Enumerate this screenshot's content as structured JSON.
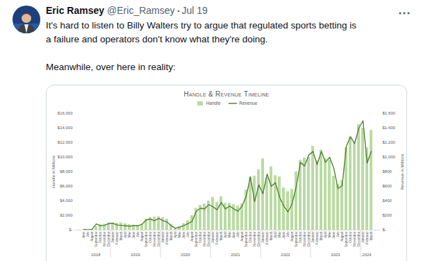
{
  "tweet": {
    "author": "Eric Ramsey",
    "handle": "@Eric_Ramsey",
    "date": "Jul 19",
    "paragraphs": [
      [
        "It's hard to listen to Billy Walters try to argue that regulated sports betting is",
        "a failure and operators don't know what they're doing."
      ],
      [
        "Meanwhile, over here in reality:"
      ]
    ]
  },
  "chart_data": {
    "type": "bar",
    "title": "Handle & Revenue Timeline",
    "categories": [
      "June",
      "July",
      "August",
      "September",
      "October",
      "November",
      "December",
      "January",
      "February",
      "March",
      "April",
      "May",
      "June",
      "July",
      "August",
      "September",
      "October",
      "November",
      "December",
      "January",
      "February",
      "March",
      "April",
      "May",
      "June",
      "July",
      "August",
      "September",
      "October",
      "November",
      "December",
      "January",
      "February",
      "March",
      "April",
      "May",
      "June",
      "July",
      "August",
      "September",
      "October",
      "November",
      "December",
      "January",
      "February",
      "March",
      "April",
      "May",
      "June",
      "July",
      "August",
      "September",
      "October",
      "November",
      "December",
      "January",
      "February",
      "March",
      "April",
      "May",
      "June",
      "July",
      "August",
      "September",
      "October",
      "November",
      "December",
      "January",
      "February",
      "March"
    ],
    "category_years": [
      "2018",
      "2018",
      "2018",
      "2018",
      "2018",
      "2018",
      "2018",
      "2019",
      "2019",
      "2019",
      "2019",
      "2019",
      "2019",
      "2019",
      "2019",
      "2019",
      "2019",
      "2019",
      "2019",
      "2020",
      "2020",
      "2020",
      "2020",
      "2020",
      "2020",
      "2020",
      "2020",
      "2020",
      "2020",
      "2020",
      "2020",
      "2021",
      "2021",
      "2021",
      "2021",
      "2021",
      "2021",
      "2021",
      "2021",
      "2021",
      "2021",
      "2021",
      "2021",
      "2022",
      "2022",
      "2022",
      "2022",
      "2022",
      "2022",
      "2022",
      "2022",
      "2022",
      "2022",
      "2022",
      "2022",
      "2023",
      "2023",
      "2023",
      "2023",
      "2023",
      "2023",
      "2023",
      "2023",
      "2023",
      "2023",
      "2023",
      "2023",
      "2024",
      "2024",
      "2024"
    ],
    "series": [
      {
        "name": "Handle",
        "type": "bar",
        "color": "#b9dca1",
        "values": [
          20,
          50,
          100,
          500,
          750,
          800,
          1000,
          1000,
          950,
          1000,
          900,
          750,
          700,
          650,
          800,
          1500,
          1750,
          1800,
          1850,
          1700,
          1500,
          800,
          300,
          500,
          900,
          1300,
          2000,
          3000,
          3400,
          3600,
          4000,
          4500,
          3800,
          4600,
          3700,
          3700,
          3500,
          3300,
          3600,
          5500,
          7300,
          7400,
          8300,
          9800,
          7200,
          8700,
          7500,
          7300,
          5800,
          5300,
          5600,
          8000,
          9600,
          9900,
          10000,
          11500,
          9500,
          11000,
          9800,
          9600,
          7400,
          6300,
          6800,
          11300,
          12800,
          12000,
          14500,
          14000,
          11300,
          13700
        ]
      },
      {
        "name": "Revenue",
        "type": "line",
        "axis": "y2",
        "color": "#548235",
        "values": [
          10,
          5,
          10,
          85,
          60,
          65,
          90,
          95,
          70,
          65,
          60,
          55,
          60,
          60,
          80,
          140,
          150,
          130,
          160,
          130,
          110,
          60,
          25,
          40,
          60,
          90,
          120,
          260,
          300,
          290,
          350,
          320,
          280,
          380,
          290,
          330,
          290,
          260,
          330,
          470,
          730,
          390,
          620,
          500,
          770,
          600,
          650,
          450,
          330,
          250,
          360,
          600,
          930,
          880,
          1030,
          1080,
          900,
          1080,
          930,
          1000,
          850,
          570,
          610,
          1150,
          1280,
          1190,
          1400,
          1500,
          920,
          1080
        ]
      }
    ],
    "ylabel": "Handle in Millions",
    "y2label": "Revenue in Millions",
    "ylim": [
      0,
      16000
    ],
    "yticks": [
      {
        "value": 0,
        "label": "$-"
      },
      {
        "value": 2000,
        "label": "$2,000"
      },
      {
        "value": 4000,
        "label": "$4,000"
      },
      {
        "value": 6000,
        "label": "$6,000"
      },
      {
        "value": 8000,
        "label": "$8,000"
      },
      {
        "value": 10000,
        "label": "$10,000"
      },
      {
        "value": 12000,
        "label": "$12,000"
      },
      {
        "value": 14000,
        "label": "$14,000"
      },
      {
        "value": 16000,
        "label": "$16,000"
      }
    ],
    "y2lim": [
      0,
      1600
    ],
    "y2ticks": [
      {
        "value": 0,
        "label": "$-"
      },
      {
        "value": 200,
        "label": "$200"
      },
      {
        "value": 400,
        "label": "$400"
      },
      {
        "value": 600,
        "label": "$600"
      },
      {
        "value": 800,
        "label": "$800"
      },
      {
        "value": 1000,
        "label": "$1,000"
      },
      {
        "value": 1200,
        "label": "$1,200"
      },
      {
        "value": 1400,
        "label": "$1,400"
      },
      {
        "value": 1600,
        "label": "$1,600"
      }
    ],
    "grid": false,
    "legend": "top"
  }
}
